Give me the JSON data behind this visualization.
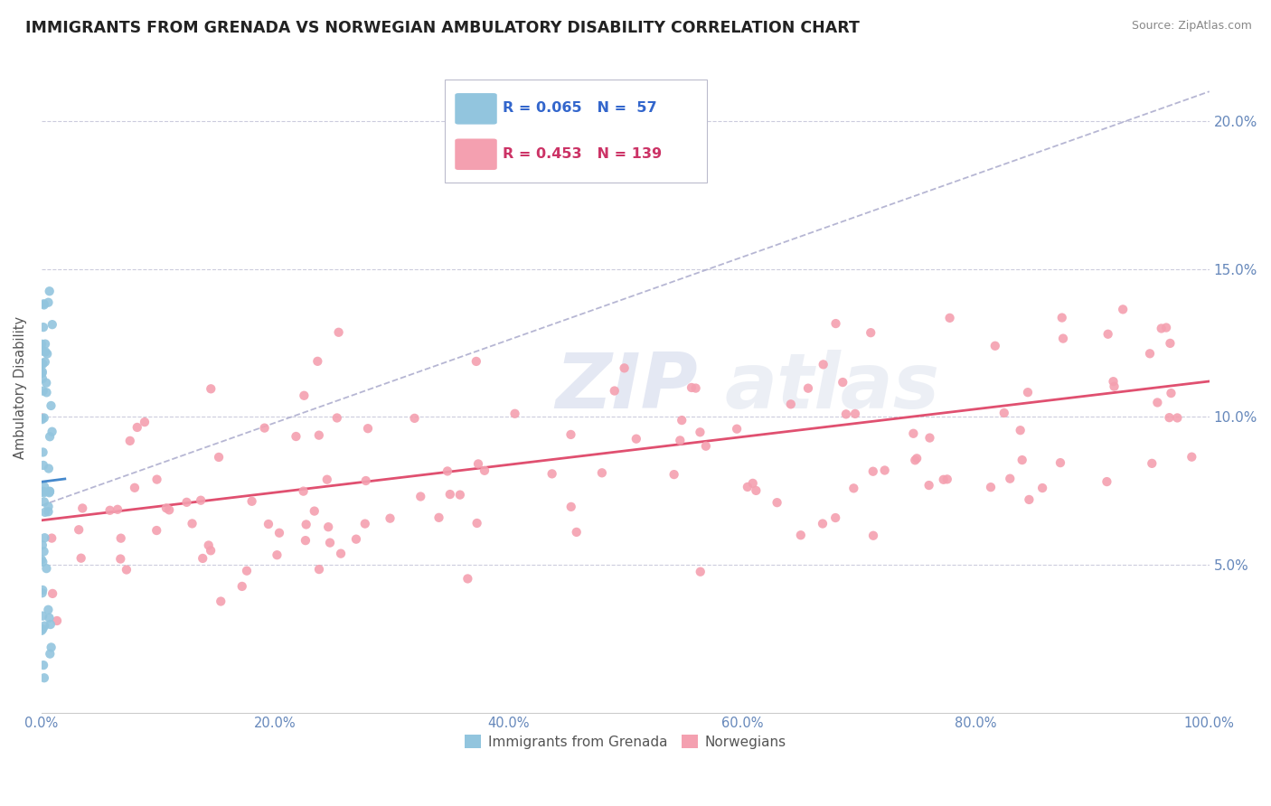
{
  "title": "IMMIGRANTS FROM GRENADA VS NORWEGIAN AMBULATORY DISABILITY CORRELATION CHART",
  "source": "Source: ZipAtlas.com",
  "ylabel": "Ambulatory Disability",
  "xlim": [
    0.0,
    100.0
  ],
  "ylim": [
    0.0,
    22.0
  ],
  "xtick_vals": [
    0,
    20,
    40,
    60,
    80,
    100
  ],
  "ytick_vals": [
    5,
    10,
    15,
    20
  ],
  "legend_entry1": "Immigrants from Grenada",
  "legend_entry2": "Norwegians",
  "color_blue": "#92c5de",
  "color_pink": "#f4a0b0",
  "color_pink_line": "#e05070",
  "color_blue_line": "#4488cc",
  "color_dashed_line": "#aaaacc",
  "watermark_zip": "ZIP",
  "watermark_atlas": "atlas",
  "blue_R": 0.065,
  "blue_N": 57,
  "pink_R": 0.453,
  "pink_N": 139,
  "legend_r1": "R = 0.065",
  "legend_n1": "N =  57",
  "legend_r2": "R = 0.453",
  "legend_n2": "N = 139"
}
